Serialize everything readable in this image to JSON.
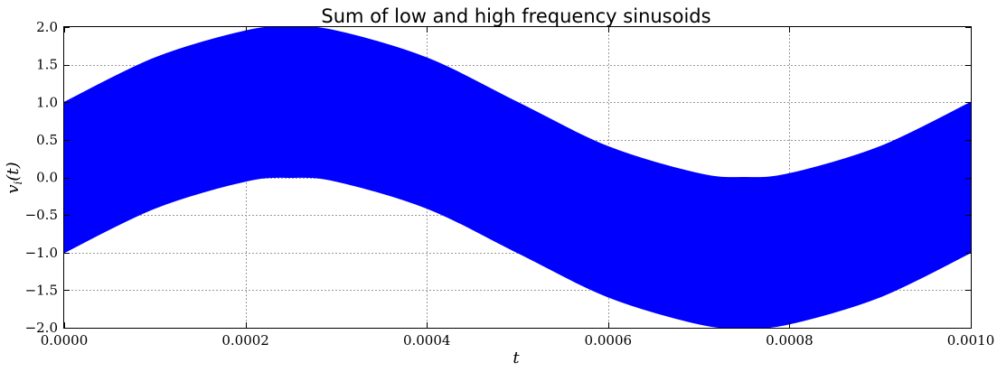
{
  "chart_data": {
    "type": "area",
    "title": "Sum of low and high frequency sinusoids",
    "xlabel": "t",
    "ylabel": "v_i(t)",
    "xlim": [
      0.0,
      0.001
    ],
    "ylim": [
      -2.0,
      2.0
    ],
    "xticks": [
      "0.0000",
      "0.0002",
      "0.0004",
      "0.0006",
      "0.0008",
      "0.0010"
    ],
    "yticks": [
      "−2.0",
      "−1.5",
      "−1.0",
      "−0.5",
      "0.0",
      "0.5",
      "1.0",
      "1.5",
      "2.0"
    ],
    "grid": true,
    "series": [
      {
        "color": "#0000ff",
        "x": [
          0.0,
          0.0001,
          0.0002,
          0.00025,
          0.0003,
          0.0004,
          0.0005,
          0.0006,
          0.0007,
          0.00075,
          0.0008,
          0.0009,
          0.001
        ],
        "upper": [
          1.0,
          1.59,
          1.95,
          2.0,
          1.95,
          1.59,
          1.0,
          0.41,
          0.05,
          0.0,
          0.05,
          0.41,
          1.0
        ],
        "lower": [
          -1.0,
          -0.41,
          -0.05,
          0.0,
          -0.05,
          -0.41,
          -1.0,
          -1.59,
          -1.95,
          -2.0,
          -1.95,
          -1.59,
          -1.0
        ]
      }
    ]
  }
}
